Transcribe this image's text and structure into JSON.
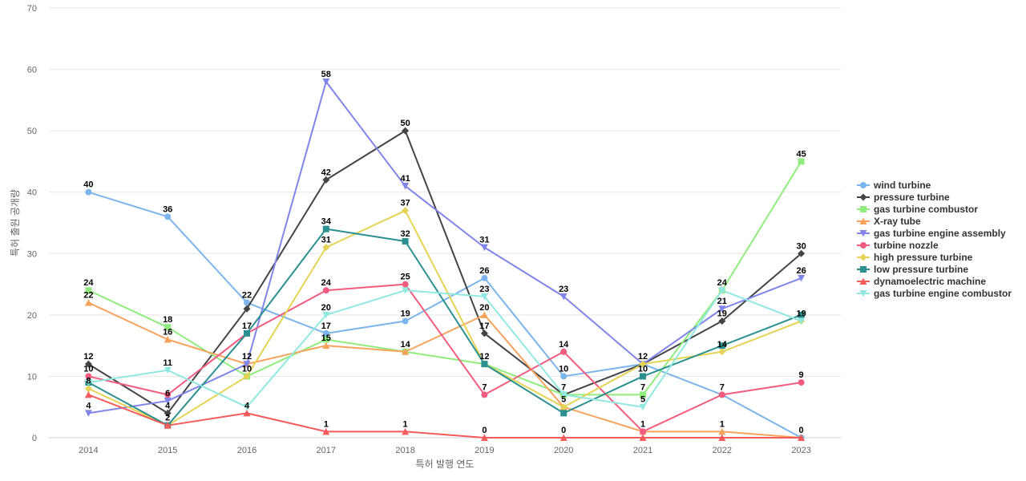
{
  "chart_data": {
    "type": "line",
    "xlabel": "특허 발행 연도",
    "ylabel": "특허 출원 공개량",
    "ylim": [
      0,
      70
    ],
    "yticks": [
      0,
      10,
      20,
      30,
      40,
      50,
      60,
      70
    ],
    "categories": [
      "2014",
      "2015",
      "2016",
      "2017",
      "2018",
      "2019",
      "2020",
      "2021",
      "2022",
      "2023"
    ],
    "grid": "horizontal",
    "legend_position": "right",
    "series": [
      {
        "name": "wind turbine",
        "color": "#7cb5ec",
        "marker": "circle",
        "values": [
          40,
          36,
          22,
          17,
          19,
          26,
          10,
          12,
          7,
          0
        ]
      },
      {
        "name": "pressure turbine",
        "color": "#434348",
        "marker": "diamond",
        "values": [
          12,
          4,
          21,
          42,
          50,
          17,
          7,
          12,
          19,
          30
        ]
      },
      {
        "name": "gas turbine combustor",
        "color": "#90ed7d",
        "marker": "square",
        "values": [
          24,
          18,
          10,
          16,
          14,
          12,
          7,
          7,
          24,
          45
        ]
      },
      {
        "name": "X-ray tube",
        "color": "#f7a35c",
        "marker": "triangle",
        "values": [
          22,
          16,
          12,
          15,
          14,
          20,
          5,
          1,
          1,
          0
        ]
      },
      {
        "name": "gas turbine engine assembly",
        "color": "#8085e9",
        "marker": "triangle-down",
        "values": [
          4,
          6,
          12,
          58,
          41,
          31,
          23,
          12,
          21,
          26
        ]
      },
      {
        "name": "turbine nozzle",
        "color": "#f15c80",
        "marker": "circle",
        "values": [
          10,
          7,
          17,
          24,
          25,
          7,
          14,
          1,
          7,
          9
        ]
      },
      {
        "name": "high pressure turbine",
        "color": "#e4d354",
        "marker": "diamond",
        "values": [
          8,
          2,
          10,
          31,
          37,
          12,
          5,
          12,
          14,
          19
        ]
      },
      {
        "name": "low pressure turbine",
        "color": "#2b908f",
        "marker": "square",
        "values": [
          9,
          2,
          17,
          34,
          32,
          12,
          4,
          10,
          15,
          20
        ]
      },
      {
        "name": "dynamoelectric machine",
        "color": "#f45b5b",
        "marker": "triangle",
        "values": [
          7,
          2,
          4,
          1,
          1,
          0,
          0,
          0,
          0,
          0
        ]
      },
      {
        "name": "gas turbine engine combustor",
        "color": "#91e8e1",
        "marker": "triangle-down",
        "values": [
          9,
          11,
          5,
          20,
          24,
          23,
          7,
          5,
          24,
          19
        ]
      }
    ],
    "data_labels": [
      {
        "x": "2014",
        "text": "40",
        "value": 40
      },
      {
        "x": "2014",
        "text": "24",
        "value": 24
      },
      {
        "x": "2014",
        "text": "22",
        "value": 22
      },
      {
        "x": "2014",
        "text": "12",
        "value": 12
      },
      {
        "x": "2014",
        "text": "10",
        "value": 10
      },
      {
        "x": "2014",
        "text": "8",
        "value": 8
      },
      {
        "x": "2014",
        "text": "4",
        "value": 4
      },
      {
        "x": "2015",
        "text": "36",
        "value": 36
      },
      {
        "x": "2015",
        "text": "18",
        "value": 18
      },
      {
        "x": "2015",
        "text": "16",
        "value": 16
      },
      {
        "x": "2015",
        "text": "11",
        "value": 11
      },
      {
        "x": "2015",
        "text": "6",
        "value": 6
      },
      {
        "x": "2015",
        "text": "4",
        "value": 4
      },
      {
        "x": "2015",
        "text": "2",
        "value": 2
      },
      {
        "x": "2016",
        "text": "22",
        "value": 22
      },
      {
        "x": "2016",
        "text": "17",
        "value": 17
      },
      {
        "x": "2016",
        "text": "12",
        "value": 12
      },
      {
        "x": "2016",
        "text": "10",
        "value": 10
      },
      {
        "x": "2016",
        "text": "4",
        "value": 4
      },
      {
        "x": "2017",
        "text": "58",
        "value": 58
      },
      {
        "x": "2017",
        "text": "42",
        "value": 42
      },
      {
        "x": "2017",
        "text": "34",
        "value": 34
      },
      {
        "x": "2017",
        "text": "31",
        "value": 31
      },
      {
        "x": "2017",
        "text": "24",
        "value": 24
      },
      {
        "x": "2017",
        "text": "20",
        "value": 20
      },
      {
        "x": "2017",
        "text": "17",
        "value": 17
      },
      {
        "x": "2017",
        "text": "15",
        "value": 15
      },
      {
        "x": "2017",
        "text": "1",
        "value": 1
      },
      {
        "x": "2018",
        "text": "50",
        "value": 50
      },
      {
        "x": "2018",
        "text": "41",
        "value": 41
      },
      {
        "x": "2018",
        "text": "37",
        "value": 37
      },
      {
        "x": "2018",
        "text": "32",
        "value": 32
      },
      {
        "x": "2018",
        "text": "25",
        "value": 25
      },
      {
        "x": "2018",
        "text": "19",
        "value": 19
      },
      {
        "x": "2018",
        "text": "14",
        "value": 14
      },
      {
        "x": "2018",
        "text": "1",
        "value": 1
      },
      {
        "x": "2019",
        "text": "31",
        "value": 31
      },
      {
        "x": "2019",
        "text": "26",
        "value": 26
      },
      {
        "x": "2019",
        "text": "23",
        "value": 23
      },
      {
        "x": "2019",
        "text": "20",
        "value": 20
      },
      {
        "x": "2019",
        "text": "17",
        "value": 17
      },
      {
        "x": "2019",
        "text": "12",
        "value": 12
      },
      {
        "x": "2019",
        "text": "7",
        "value": 7
      },
      {
        "x": "2019",
        "text": "0",
        "value": 0
      },
      {
        "x": "2020",
        "text": "23",
        "value": 23
      },
      {
        "x": "2020",
        "text": "14",
        "value": 14
      },
      {
        "x": "2020",
        "text": "10",
        "value": 10
      },
      {
        "x": "2020",
        "text": "7",
        "value": 7
      },
      {
        "x": "2020",
        "text": "5",
        "value": 5
      },
      {
        "x": "2020",
        "text": "0",
        "value": 0
      },
      {
        "x": "2021",
        "text": "12",
        "value": 12
      },
      {
        "x": "2021",
        "text": "10",
        "value": 10
      },
      {
        "x": "2021",
        "text": "7",
        "value": 7
      },
      {
        "x": "2021",
        "text": "5",
        "value": 5
      },
      {
        "x": "2021",
        "text": "1",
        "value": 1
      },
      {
        "x": "2022",
        "text": "24",
        "value": 24
      },
      {
        "x": "2022",
        "text": "21",
        "value": 21
      },
      {
        "x": "2022",
        "text": "19",
        "value": 19
      },
      {
        "x": "2022",
        "text": "14",
        "value": 14
      },
      {
        "x": "2022",
        "text": "7",
        "value": 7
      },
      {
        "x": "2022",
        "text": "1",
        "value": 1
      },
      {
        "x": "2023",
        "text": "45",
        "value": 45
      },
      {
        "x": "2023",
        "text": "30",
        "value": 30
      },
      {
        "x": "2023",
        "text": "26",
        "value": 26
      },
      {
        "x": "2023",
        "text": "19",
        "value": 19
      },
      {
        "x": "2023",
        "text": "9",
        "value": 9
      },
      {
        "x": "2023",
        "text": "0",
        "value": 0
      }
    ]
  }
}
